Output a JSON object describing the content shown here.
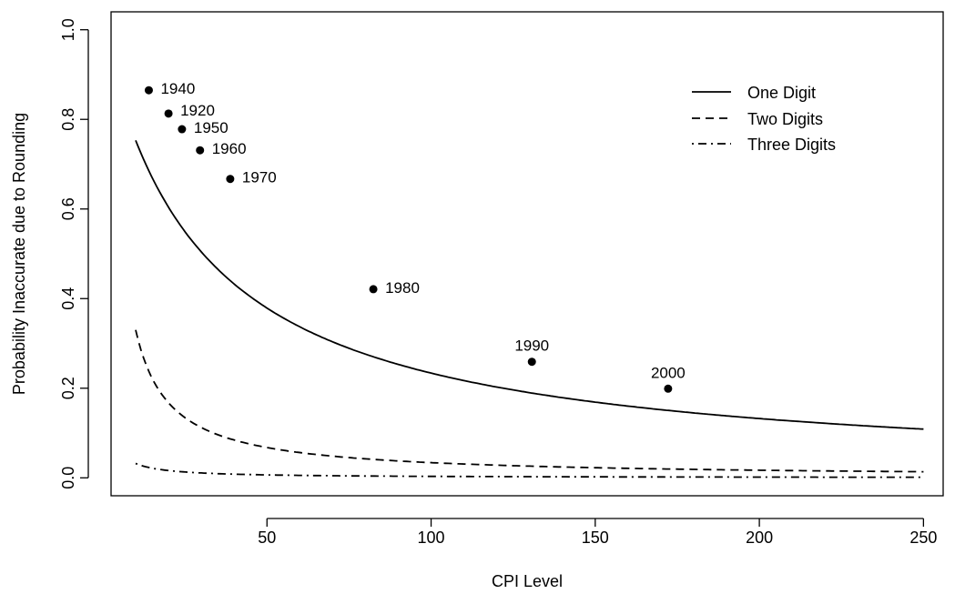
{
  "chart_data": {
    "type": "line",
    "title": "",
    "xlabel": "CPI Level",
    "ylabel": "Probability Inaccurate due to Rounding",
    "xlim": [
      2.5,
      256
    ],
    "ylim": [
      -0.04,
      1.04
    ],
    "xticks": [
      50,
      100,
      150,
      200,
      250
    ],
    "yticks": [
      0.0,
      0.2,
      0.4,
      0.6,
      0.8,
      1.0
    ],
    "xtick_labels": [
      "50",
      "100",
      "150",
      "200",
      "250"
    ],
    "ytick_labels": [
      "0.0",
      "0.2",
      "0.4",
      "0.6",
      "0.8",
      "1.0"
    ],
    "legend": {
      "placement": "top-right",
      "entries": [
        {
          "label": "One Digit",
          "dash": "solid"
        },
        {
          "label": "Two Digits",
          "dash": "dashed"
        },
        {
          "label": "Three Digits",
          "dash": "dotdash"
        }
      ]
    },
    "series": [
      {
        "name": "One Digit",
        "dash": "solid",
        "x_range": [
          10,
          250
        ],
        "digits": 1
      },
      {
        "name": "Two Digits",
        "dash": "dashed",
        "x_range": [
          10,
          250
        ],
        "digits": 2
      },
      {
        "name": "Three Digits",
        "dash": "dotdash",
        "x_range": [
          10,
          250
        ],
        "digits": 3
      }
    ],
    "points": [
      {
        "label": "1940",
        "x": 14.0,
        "y": 0.865
      },
      {
        "label": "1920",
        "x": 20.0,
        "y": 0.813
      },
      {
        "label": "1950",
        "x": 24.1,
        "y": 0.778
      },
      {
        "label": "1960",
        "x": 29.6,
        "y": 0.731
      },
      {
        "label": "1970",
        "x": 38.8,
        "y": 0.667
      },
      {
        "label": "1980",
        "x": 82.4,
        "y": 0.421
      },
      {
        "label": "1990",
        "x": 130.7,
        "y": 0.259
      },
      {
        "label": "2000",
        "x": 172.2,
        "y": 0.199
      }
    ]
  }
}
